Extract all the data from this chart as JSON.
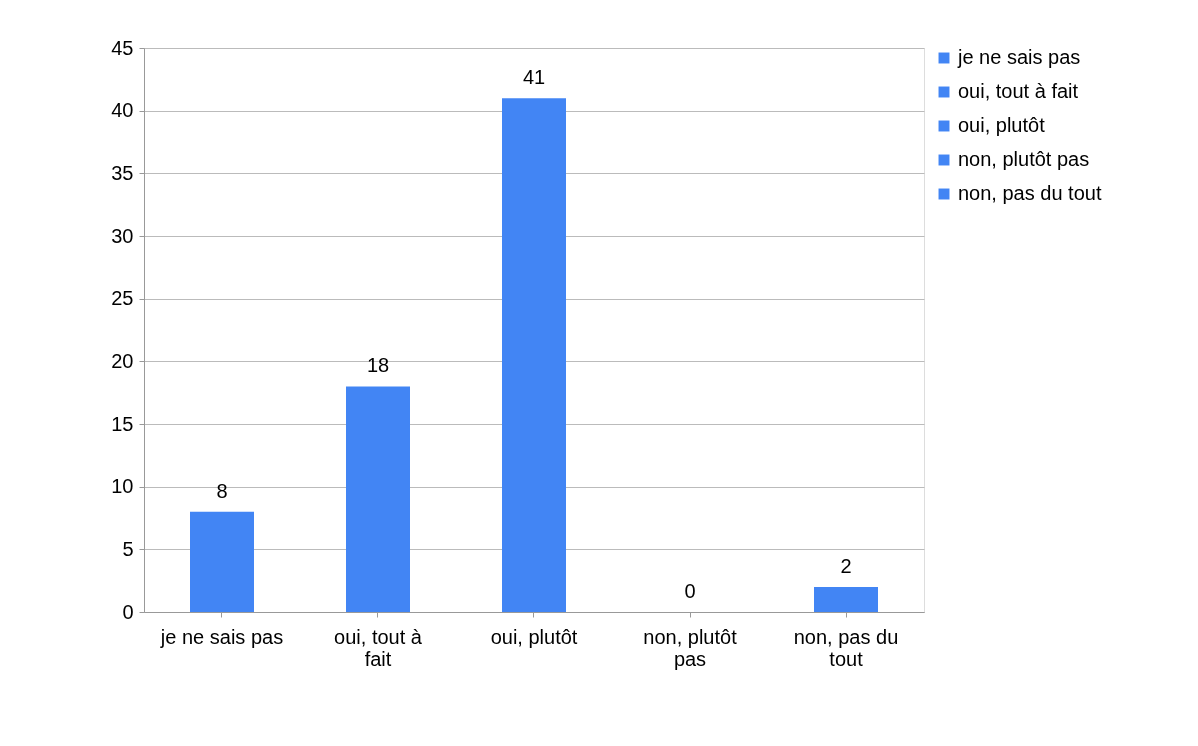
{
  "chart_data": {
    "type": "bar",
    "categories": [
      "je ne sais pas",
      "oui, tout à fait",
      "oui, plutôt",
      "non, plutôt pas",
      "non, pas du tout"
    ],
    "series": [
      {
        "name": "je ne sais pas",
        "color": "#4285f4",
        "values": [
          8,
          null,
          null,
          null,
          null
        ]
      },
      {
        "name": "oui, tout à fait",
        "color": "#4285f4",
        "values": [
          null,
          18,
          null,
          null,
          null
        ]
      },
      {
        "name": "oui, plutôt",
        "color": "#4285f4",
        "values": [
          null,
          null,
          41,
          null,
          null
        ]
      },
      {
        "name": "non, plutôt pas",
        "color": "#4285f4",
        "values": [
          null,
          null,
          null,
          0,
          null
        ]
      },
      {
        "name": "non, pas du tout",
        "color": "#4285f4",
        "values": [
          null,
          null,
          null,
          null,
          2
        ]
      }
    ],
    "stacked": true,
    "ylim": [
      0,
      45
    ],
    "yticks": [
      0,
      5,
      10,
      15,
      20,
      25,
      30,
      35,
      40,
      45
    ],
    "grid": "y",
    "legend": "right",
    "data_labels": true
  }
}
